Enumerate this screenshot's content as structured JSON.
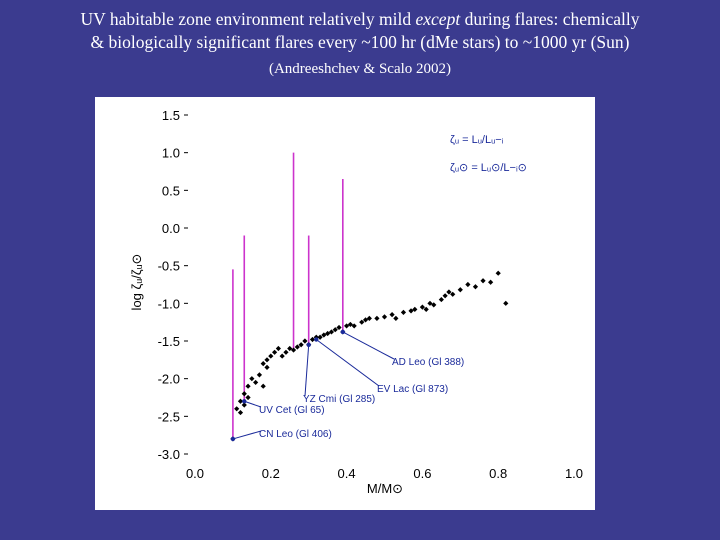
{
  "slide": {
    "title_part1": "UV habitable zone environment relatively mild ",
    "title_emph": "except",
    "title_part2": " during flares: chemically",
    "title_line2": "& biologically significant flares every ~100 hr (dMe stars) to ~1000 yr (Sun)",
    "citation": "(Andreeshchev & Scalo 2002)"
  },
  "chart_data": {
    "type": "scatter",
    "xlabel": "M/M⊙",
    "ylabel": "log ζᵤ/ζᵤ⊙",
    "xlim": [
      0.0,
      1.0
    ],
    "ylim": [
      -3.0,
      1.5
    ],
    "x_ticks": [
      "0.0",
      "0.2",
      "0.4",
      "0.6",
      "0.8",
      "1.0"
    ],
    "y_ticks": [
      "1.5",
      "1.0",
      "0.5",
      "0.0",
      "-0.5",
      "-1.0",
      "-1.5",
      "-2.0",
      "-2.5",
      "-3.0"
    ],
    "legend": [
      "ζᵤ = Lᵤ/Lᵤ−ᵢ",
      "ζᵤ⊙ = Lᵤ⊙/L−ᵢ⊙"
    ],
    "grid": false,
    "colors": {
      "points": "#000000",
      "flares": "#cc33cc",
      "annotations": "#1a2a9a"
    },
    "series": [
      {
        "x": [
          0.1,
          0.11,
          0.12,
          0.12,
          0.13,
          0.13,
          0.14,
          0.14,
          0.15,
          0.16,
          0.17,
          0.18,
          0.18,
          0.19,
          0.19,
          0.2,
          0.21,
          0.22,
          0.23,
          0.24,
          0.25,
          0.26,
          0.27,
          0.28,
          0.29,
          0.3,
          0.31,
          0.32,
          0.33,
          0.34,
          0.35,
          0.36,
          0.37,
          0.38,
          0.39,
          0.4,
          0.41,
          0.42,
          0.44,
          0.45,
          0.46,
          0.48,
          0.5,
          0.52,
          0.53,
          0.55,
          0.57,
          0.58,
          0.6,
          0.61,
          0.62,
          0.63,
          0.65,
          0.66,
          0.67,
          0.68,
          0.7,
          0.72,
          0.74,
          0.76,
          0.78,
          0.8,
          0.82
        ],
        "y": [
          -2.8,
          -2.4,
          -2.45,
          -2.3,
          -2.35,
          -2.2,
          -2.1,
          -2.25,
          -2.0,
          -2.05,
          -1.95,
          -2.1,
          -1.8,
          -1.85,
          -1.75,
          -1.7,
          -1.65,
          -1.6,
          -1.7,
          -1.65,
          -1.6,
          -1.62,
          -1.58,
          -1.55,
          -1.5,
          -1.55,
          -1.48,
          -1.45,
          -1.45,
          -1.42,
          -1.4,
          -1.38,
          -1.35,
          -1.32,
          -1.38,
          -1.3,
          -1.28,
          -1.3,
          -1.25,
          -1.22,
          -1.2,
          -1.2,
          -1.18,
          -1.15,
          -1.2,
          -1.12,
          -1.1,
          -1.08,
          -1.05,
          -1.08,
          -1.0,
          -1.02,
          -0.95,
          -0.9,
          -0.85,
          -0.88,
          -0.82,
          -0.75,
          -0.78,
          -0.7,
          -0.72,
          -0.6,
          -1.0
        ]
      }
    ],
    "flares": [
      {
        "x": 0.1,
        "y_top": -0.55,
        "y_base": -2.8
      },
      {
        "x": 0.13,
        "y_top": -0.1,
        "y_base": -2.3
      },
      {
        "x": 0.26,
        "y_top": 1.0,
        "y_base": -1.62
      },
      {
        "x": 0.3,
        "y_top": -0.1,
        "y_base": -1.55
      },
      {
        "x": 0.39,
        "y_top": 0.65,
        "y_base": -1.38
      }
    ],
    "annotations": [
      {
        "label": "AD Leo (Gl 388)",
        "x": 0.39,
        "y": -1.38
      },
      {
        "label": "EV Lac (Gl 873)",
        "x": 0.32,
        "y": -1.48
      },
      {
        "label": "YZ Cmi (Gl 285)",
        "x": 0.3,
        "y": -1.55
      },
      {
        "label": "UV Cet (Gl 65)",
        "x": 0.13,
        "y": -2.3
      },
      {
        "label": "CN Leo (Gl 406)",
        "x": 0.1,
        "y": -2.8
      }
    ]
  }
}
